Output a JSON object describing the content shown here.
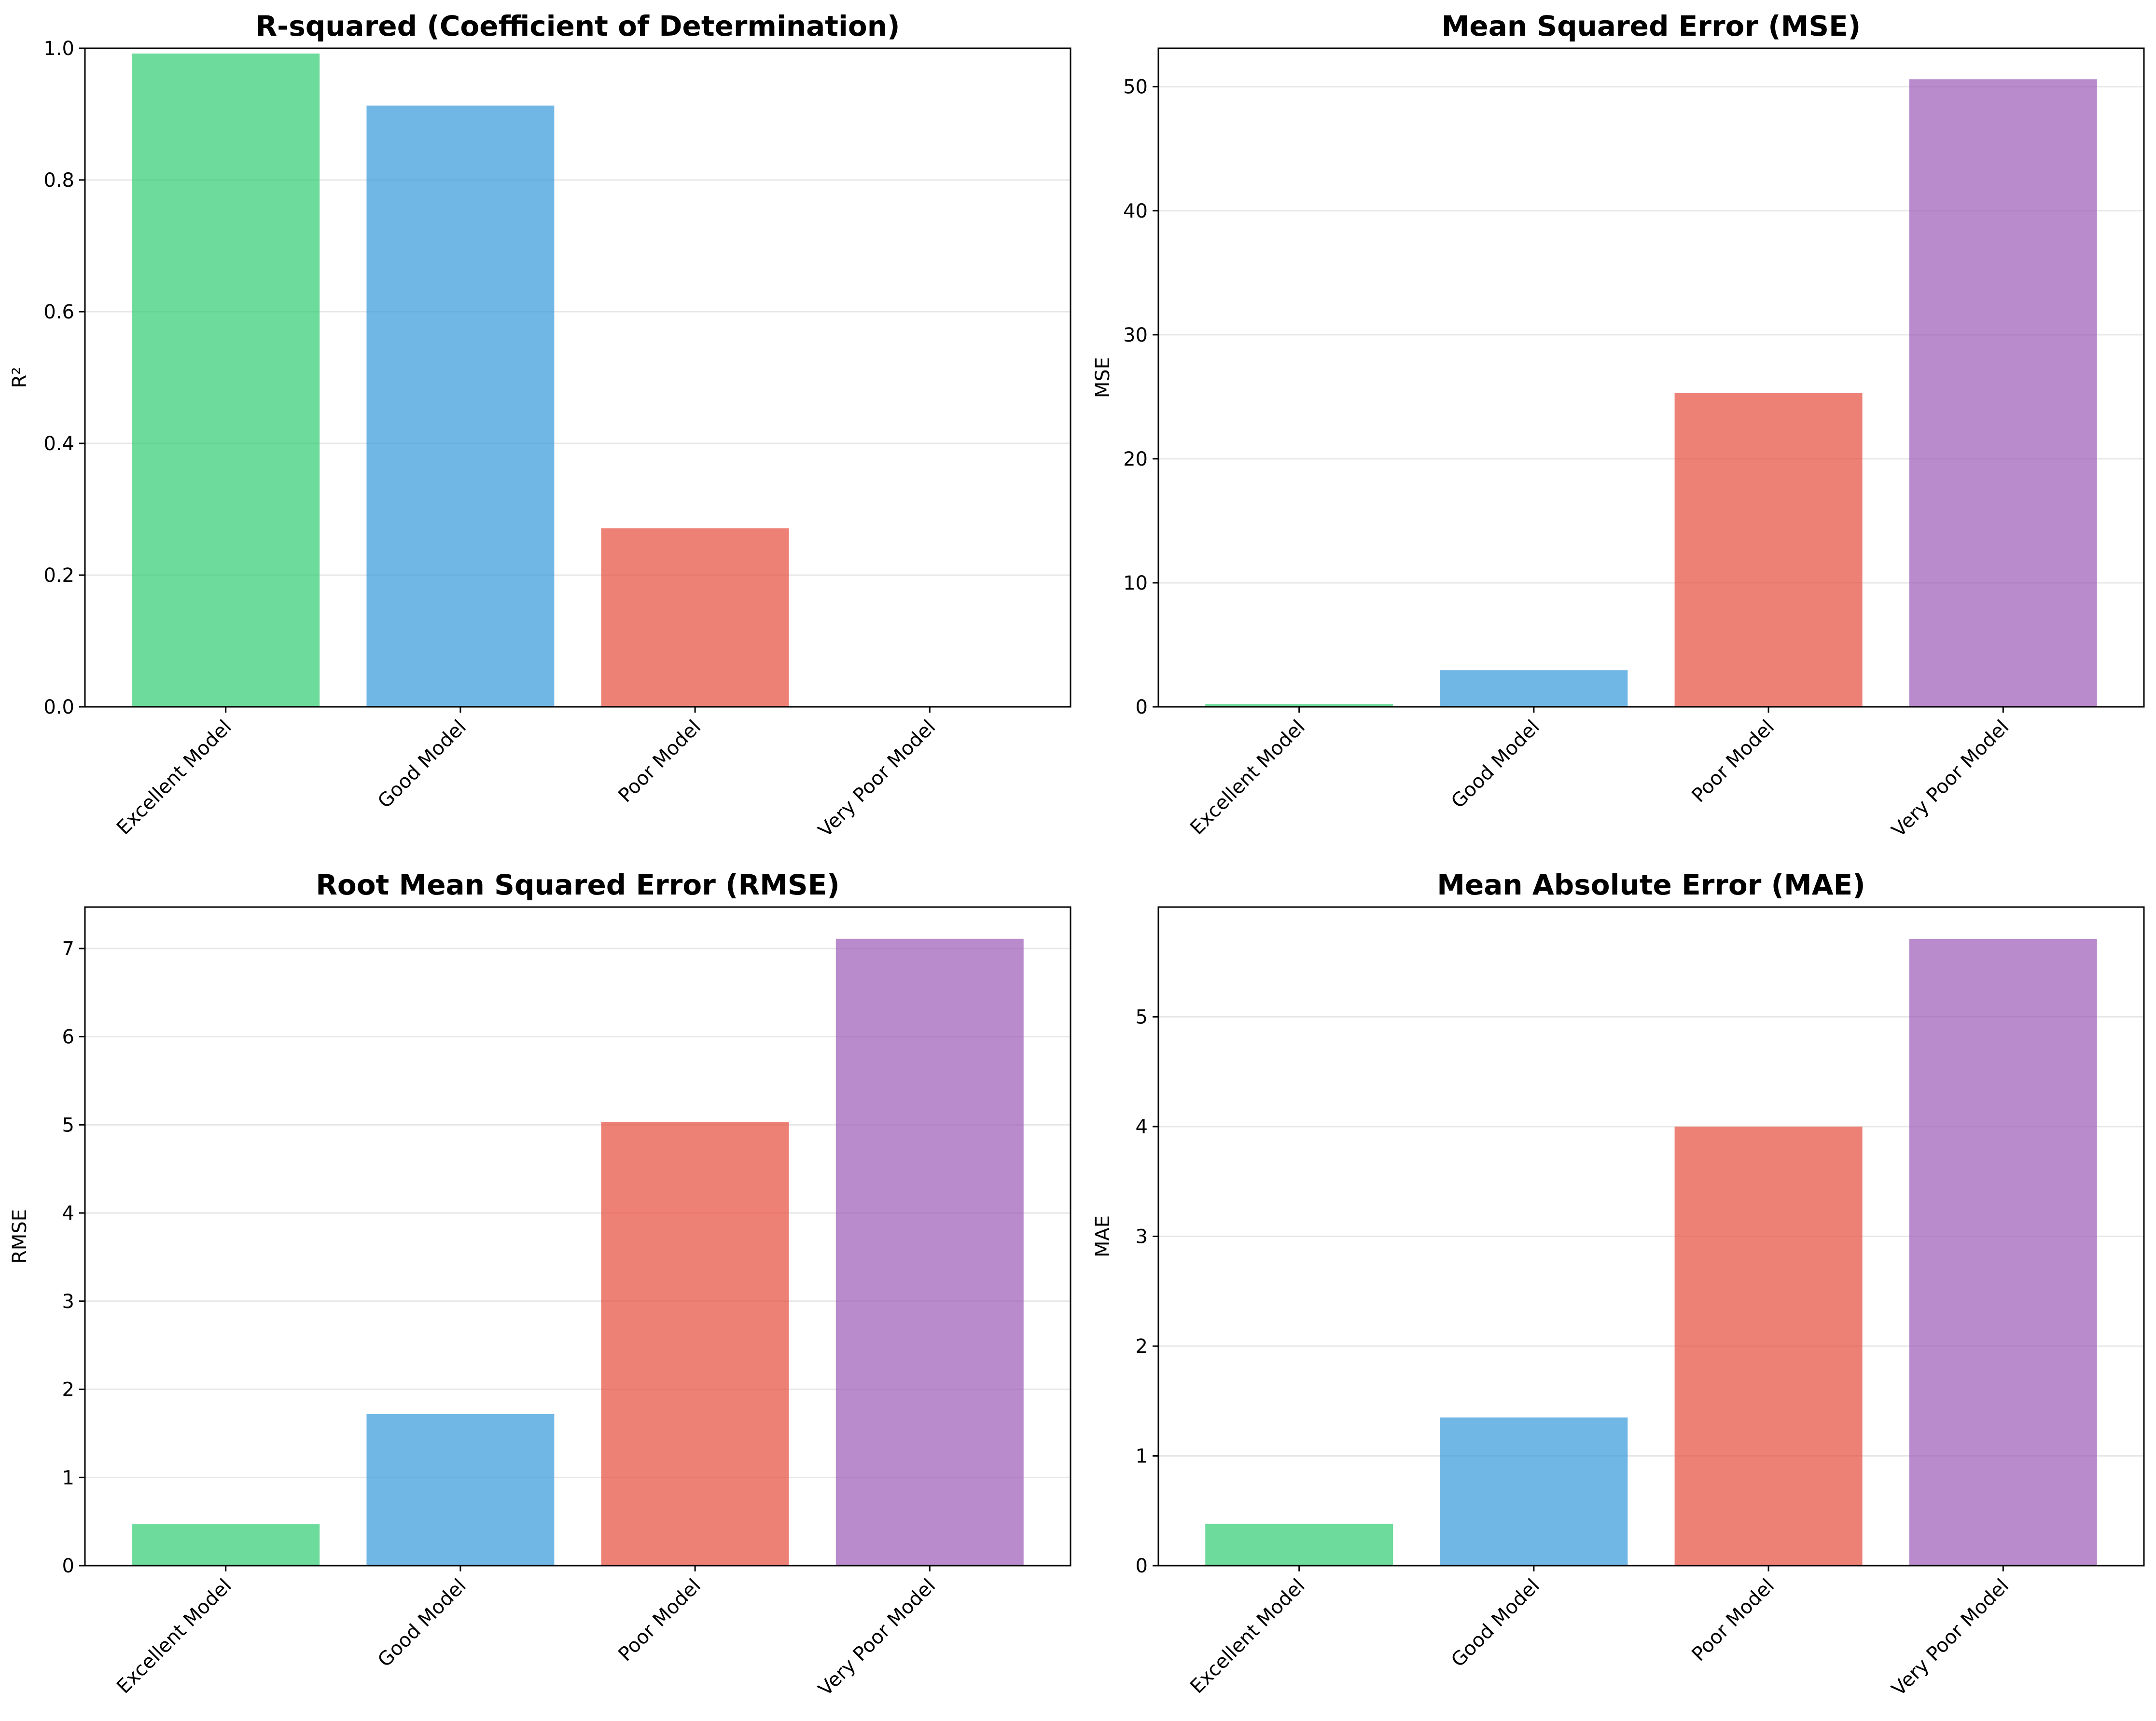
{
  "colors": {
    "excellent": "#2ecc71",
    "good": "#3498db",
    "poor": "#e74c3c",
    "very_poor": "#9b59b6"
  },
  "chart_data": [
    {
      "id": "r2",
      "type": "bar",
      "title": "R-squared (Coefficient of Determination)",
      "xlabel": "",
      "ylabel": "R²",
      "categories": [
        "Excellent Model",
        "Good Model",
        "Poor Model",
        "Very Poor Model"
      ],
      "values": [
        0.992,
        0.913,
        0.271,
        0.0
      ],
      "ylim": [
        0,
        1.0
      ],
      "yticks": [
        "0.0",
        "0.2",
        "0.4",
        "0.6",
        "0.8",
        "1.0"
      ],
      "grid": "y",
      "bar_colors": [
        "#2ecc71",
        "#3498db",
        "#e74c3c",
        "#9b59b6"
      ],
      "bar_alpha": 0.7
    },
    {
      "id": "mse",
      "type": "bar",
      "title": "Mean Squared Error (MSE)",
      "xlabel": "",
      "ylabel": "MSE",
      "categories": [
        "Excellent Model",
        "Good Model",
        "Poor Model",
        "Very Poor Model"
      ],
      "values": [
        0.22,
        2.95,
        25.3,
        50.6
      ],
      "ylim": [
        0,
        53.1
      ],
      "yticks": [
        "0",
        "10",
        "20",
        "30",
        "40",
        "50"
      ],
      "grid": "y",
      "bar_colors": [
        "#2ecc71",
        "#3498db",
        "#e74c3c",
        "#9b59b6"
      ],
      "bar_alpha": 0.7
    },
    {
      "id": "rmse",
      "type": "bar",
      "title": "Root Mean Squared Error (RMSE)",
      "xlabel": "",
      "ylabel": "RMSE",
      "categories": [
        "Excellent Model",
        "Good Model",
        "Poor Model",
        "Very Poor Model"
      ],
      "values": [
        0.47,
        1.72,
        5.03,
        7.11
      ],
      "ylim": [
        0,
        7.47
      ],
      "yticks": [
        "0",
        "1",
        "2",
        "3",
        "4",
        "5",
        "6",
        "7"
      ],
      "grid": "y",
      "bar_colors": [
        "#2ecc71",
        "#3498db",
        "#e74c3c",
        "#9b59b6"
      ],
      "bar_alpha": 0.7
    },
    {
      "id": "mae",
      "type": "bar",
      "title": "Mean Absolute Error (MAE)",
      "xlabel": "",
      "ylabel": "MAE",
      "categories": [
        "Excellent Model",
        "Good Model",
        "Poor Model",
        "Very Poor Model"
      ],
      "values": [
        0.38,
        1.35,
        4.0,
        5.71
      ],
      "ylim": [
        0,
        6.0
      ],
      "yticks": [
        "0",
        "1",
        "2",
        "3",
        "4",
        "5"
      ],
      "grid": "y",
      "bar_colors": [
        "#2ecc71",
        "#3498db",
        "#e74c3c",
        "#9b59b6"
      ],
      "bar_alpha": 0.7
    }
  ]
}
